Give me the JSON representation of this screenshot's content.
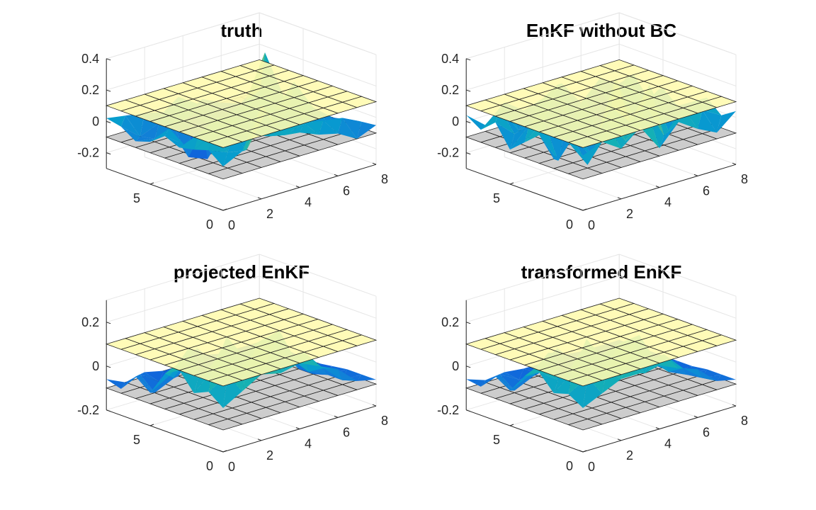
{
  "figure": {
    "background": "#ffffff",
    "grid_color": "#e6e6e6",
    "axis_color": "#262626"
  },
  "chart_data": [
    {
      "type": "surface3d",
      "title": "truth",
      "zlim": [
        -0.3,
        0.4
      ],
      "ztick_labels": [
        "0.4",
        "0.2",
        "0",
        "-0.2"
      ],
      "ztick_values": [
        0.4,
        0.2,
        0,
        -0.2
      ],
      "x_axis": {
        "range": [
          0,
          8
        ],
        "tick_labels": [
          "0",
          "2",
          "4",
          "6",
          "8"
        ],
        "tick_values": [
          0,
          2,
          4,
          6,
          8
        ]
      },
      "y_axis": {
        "range": [
          0,
          8
        ],
        "tick_labels": [
          "0",
          "5"
        ],
        "tick_values": [
          0,
          5
        ]
      },
      "bounds": {
        "upper": 0.1,
        "lower": -0.1,
        "upper_color": "#fffbb0",
        "lower_color": "#c8c8c8"
      },
      "surface_z": [
        [
          -0.02,
          0.04,
          0.3,
          0.1,
          0.05,
          0.0,
          -0.03,
          -0.1,
          -0.05
        ],
        [
          0.05,
          0.0,
          -0.02,
          0.18,
          0.0,
          0.04,
          0.02,
          0.0,
          -0.06
        ],
        [
          0.02,
          0.08,
          0.04,
          0.0,
          -0.04,
          0.1,
          -0.02,
          -0.06,
          -0.08
        ],
        [
          0.0,
          0.05,
          0.12,
          0.08,
          0.0,
          0.06,
          0.2,
          0.0,
          -0.1
        ],
        [
          0.04,
          -0.05,
          0.0,
          -0.06,
          -0.02,
          0.15,
          -0.18,
          -0.1,
          -0.12
        ],
        [
          -0.03,
          0.02,
          -0.2,
          -0.25,
          0.0,
          0.05,
          0.32,
          0.0,
          -0.04
        ],
        [
          -0.06,
          -0.08,
          -0.04,
          0.0,
          -0.12,
          -0.05,
          0.0,
          -0.06,
          -0.08
        ],
        [
          0.0,
          -0.1,
          -0.05,
          0.08,
          0.0,
          -0.1,
          -0.14,
          -0.08,
          -0.1
        ],
        [
          0.02,
          0.0,
          -0.02,
          -0.05,
          -0.12,
          -0.04,
          -0.1,
          -0.14,
          -0.06
        ]
      ]
    },
    {
      "type": "surface3d",
      "title": "EnKF without BC",
      "zlim": [
        -0.3,
        0.4
      ],
      "ztick_labels": [
        "0.4",
        "0.2",
        "0",
        "-0.2"
      ],
      "ztick_values": [
        0.4,
        0.2,
        0,
        -0.2
      ],
      "x_axis": {
        "range": [
          0,
          8
        ],
        "tick_labels": [
          "0",
          "2",
          "4",
          "6",
          "8"
        ],
        "tick_values": [
          0,
          2,
          4,
          6,
          8
        ]
      },
      "y_axis": {
        "range": [
          0,
          8
        ],
        "tick_labels": [
          "0",
          "5"
        ],
        "tick_values": [
          0,
          5
        ]
      },
      "bounds": {
        "upper": 0.1,
        "lower": -0.1,
        "upper_color": "#fffbb0",
        "lower_color": "#c8c8c8"
      },
      "surface_z": [
        [
          0.05,
          0.1,
          0.02,
          0.12,
          -0.05,
          0.08,
          0.0,
          -0.06,
          0.04
        ],
        [
          0.1,
          -0.08,
          0.15,
          0.0,
          0.2,
          -0.04,
          0.1,
          0.05,
          -0.02
        ],
        [
          -0.04,
          0.06,
          -0.1,
          0.18,
          0.05,
          0.25,
          -0.08,
          0.02,
          0.06
        ],
        [
          0.08,
          -0.12,
          0.05,
          -0.05,
          0.3,
          0.0,
          0.12,
          -0.1,
          0.0
        ],
        [
          0.0,
          0.1,
          -0.06,
          0.15,
          -0.1,
          0.05,
          -0.04,
          0.08,
          -0.06
        ],
        [
          -0.08,
          0.04,
          0.12,
          -0.15,
          0.08,
          -0.2,
          0.15,
          -0.05,
          0.02
        ],
        [
          0.06,
          -0.05,
          0.0,
          0.1,
          -0.06,
          0.05,
          -0.28,
          0.1,
          -0.08
        ],
        [
          -0.02,
          0.08,
          -0.1,
          0.04,
          0.12,
          -0.08,
          0.05,
          -0.15,
          0.04
        ],
        [
          0.04,
          -0.06,
          0.05,
          -0.04,
          0.0,
          0.06,
          -0.1,
          0.02,
          -0.05
        ]
      ]
    },
    {
      "type": "surface3d",
      "title": "projected EnKF",
      "zlim": [
        -0.2,
        0.3
      ],
      "ztick_labels": [
        "0.2",
        "0",
        "-0.2"
      ],
      "ztick_values": [
        0.2,
        0,
        -0.2
      ],
      "x_axis": {
        "range": [
          0,
          8
        ],
        "tick_labels": [
          "0",
          "2",
          "4",
          "6",
          "8"
        ],
        "tick_values": [
          0,
          2,
          4,
          6,
          8
        ]
      },
      "y_axis": {
        "range": [
          0,
          8
        ],
        "tick_labels": [
          "0",
          "5"
        ],
        "tick_values": [
          0,
          5
        ]
      },
      "bounds": {
        "upper": 0.1,
        "lower": -0.1,
        "upper_color": "#fffbb0",
        "lower_color": "#c8c8c8"
      },
      "surface_z": [
        [
          0.0,
          0.05,
          0.1,
          0.08,
          0.1,
          0.06,
          0.02,
          -0.06,
          -0.08
        ],
        [
          0.05,
          0.1,
          0.1,
          0.1,
          0.04,
          0.1,
          0.0,
          -0.08,
          -0.08
        ],
        [
          0.02,
          0.1,
          0.06,
          0.1,
          0.1,
          0.05,
          -0.04,
          -0.08,
          -0.08
        ],
        [
          0.1,
          0.04,
          0.1,
          0.0,
          0.1,
          0.1,
          0.0,
          -0.1,
          -0.09
        ],
        [
          0.06,
          0.1,
          -0.02,
          0.1,
          0.05,
          0.08,
          0.1,
          -0.1,
          -0.1
        ],
        [
          -0.05,
          0.0,
          0.1,
          -0.1,
          0.1,
          -0.08,
          0.02,
          -0.06,
          -0.1
        ],
        [
          0.0,
          -0.1,
          -0.06,
          0.04,
          -0.1,
          0.0,
          -0.1,
          -0.1,
          -0.09
        ],
        [
          -0.08,
          -0.04,
          -0.1,
          -0.1,
          0.0,
          -0.1,
          -0.06,
          -0.1,
          -0.1
        ],
        [
          -0.06,
          -0.1,
          -0.08,
          -0.1,
          -0.1,
          -0.08,
          -0.1,
          -0.1,
          -0.1
        ]
      ]
    },
    {
      "type": "surface3d",
      "title": "transformed EnKF",
      "zlim": [
        -0.2,
        0.3
      ],
      "ztick_labels": [
        "0.2",
        "0",
        "-0.2"
      ],
      "ztick_values": [
        0.2,
        0,
        -0.2
      ],
      "x_axis": {
        "range": [
          0,
          8
        ],
        "tick_labels": [
          "0",
          "2",
          "4",
          "6",
          "8"
        ],
        "tick_values": [
          0,
          2,
          4,
          6,
          8
        ]
      },
      "y_axis": {
        "range": [
          0,
          8
        ],
        "tick_labels": [
          "0",
          "5"
        ],
        "tick_values": [
          0,
          5
        ]
      },
      "bounds": {
        "upper": 0.1,
        "lower": -0.1,
        "upper_color": "#fffbb0",
        "lower_color": "#c8c8c8"
      },
      "surface_z": [
        [
          0.0,
          0.04,
          0.08,
          0.08,
          0.09,
          0.05,
          0.02,
          -0.06,
          -0.08
        ],
        [
          0.04,
          0.09,
          0.09,
          0.09,
          0.03,
          0.09,
          0.0,
          -0.07,
          -0.08
        ],
        [
          0.02,
          0.09,
          0.05,
          0.09,
          0.09,
          0.04,
          -0.04,
          -0.08,
          -0.08
        ],
        [
          0.09,
          0.03,
          0.09,
          0.0,
          0.09,
          0.09,
          0.0,
          -0.09,
          -0.09
        ],
        [
          0.05,
          0.09,
          -0.02,
          0.09,
          0.04,
          0.07,
          0.08,
          -0.09,
          -0.09
        ],
        [
          -0.04,
          0.0,
          0.08,
          -0.09,
          0.09,
          -0.07,
          0.02,
          -0.06,
          -0.09
        ],
        [
          0.0,
          -0.09,
          -0.05,
          0.03,
          -0.09,
          0.0,
          -0.09,
          -0.09,
          -0.09
        ],
        [
          -0.07,
          -0.04,
          -0.09,
          -0.09,
          0.0,
          -0.09,
          -0.06,
          -0.09,
          -0.09
        ],
        [
          -0.06,
          -0.09,
          -0.08,
          -0.09,
          -0.09,
          -0.08,
          -0.09,
          -0.09,
          -0.09
        ]
      ]
    }
  ]
}
